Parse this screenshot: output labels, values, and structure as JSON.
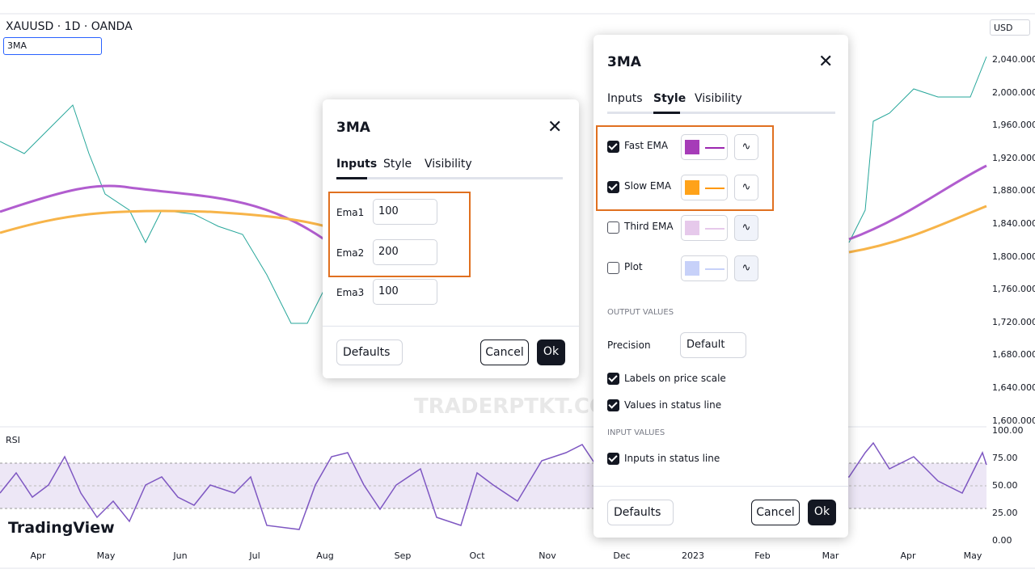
{
  "header": {
    "symbol": "XAUUSD · 1D · OANDA",
    "indicator": "3MA",
    "currency": "USD"
  },
  "price_axis": [
    "2,040.000",
    "2,000.000",
    "1,960.000",
    "1,920.000",
    "1,880.000",
    "1,840.000",
    "1,800.000",
    "1,760.000",
    "1,720.000",
    "1,680.000",
    "1,640.000",
    "1,600.000"
  ],
  "rsi_label": "RSI",
  "rsi_axis": [
    "100.00",
    "75.00",
    "50.00",
    "25.00",
    "0.00"
  ],
  "time_axis": [
    "Apr",
    "May",
    "Jun",
    "Jul",
    "Aug",
    "Sep",
    "Oct",
    "Nov",
    "Dec",
    "2023",
    "Feb",
    "Mar",
    "Apr",
    "May"
  ],
  "logo": "TradingView",
  "watermark": "TRADERPTKT.COM",
  "inputs_dialog": {
    "title": "3MA",
    "tabs": [
      "Inputs",
      "Style",
      "Visibility"
    ],
    "fields": [
      {
        "label": "Ema1",
        "value": 100
      },
      {
        "label": "Ema2",
        "value": 200
      },
      {
        "label": "Ema3",
        "value": 100
      }
    ],
    "defaults": "Defaults",
    "cancel": "Cancel",
    "ok": "Ok"
  },
  "style_dialog": {
    "title": "3MA",
    "tabs": [
      "Inputs",
      "Style",
      "Visibility"
    ],
    "plots": [
      "Fast EMA",
      "Slow EMA",
      "Third EMA",
      "Plot"
    ],
    "output_heading": "OUTPUT VALUES",
    "precision_label": "Precision",
    "precision_value": "Default",
    "options": [
      "Labels on price scale",
      "Values in status line"
    ],
    "input_heading": "INPUT VALUES",
    "input_options": [
      "Inputs in status line"
    ],
    "defaults": "Defaults",
    "cancel": "Cancel",
    "ok": "Ok"
  }
}
